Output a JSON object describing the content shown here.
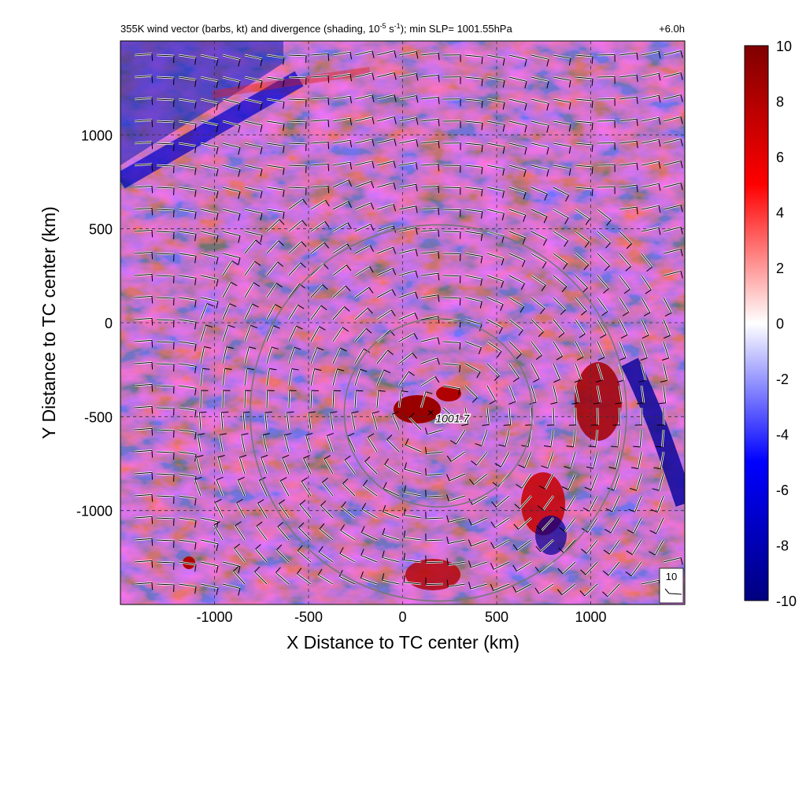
{
  "chart_data": {
    "type": "heatmap",
    "title_main": "355K wind vector (barbs, kt) and divergence (shading, 10",
    "title_exp1": "-5",
    "title_mid": " s",
    "title_exp2": "-1",
    "title_end": "); min SLP= 1001.55hPa",
    "time_label": "+6.0h",
    "xlabel": "X Distance to TC center (km)",
    "ylabel": "Y Distance to TC center (km)",
    "xlim": [
      -1500,
      1500
    ],
    "ylim": [
      -1500,
      1500
    ],
    "xticks": [
      -1000,
      -500,
      0,
      500,
      1000
    ],
    "yticks": [
      1000,
      500,
      0,
      -500,
      -1000
    ],
    "xtick_labels": [
      "-1000",
      "-500",
      "0",
      "500",
      "1000"
    ],
    "ytick_labels": [
      "1000",
      "500",
      "0",
      "-500",
      "-1000"
    ],
    "grid": true,
    "colorbar": {
      "min": -10,
      "max": 10,
      "ticks": [
        10,
        8,
        6,
        4,
        2,
        0,
        -2,
        -4,
        -6,
        -8,
        -10
      ],
      "tick_labels": [
        "10",
        "8",
        "6",
        "4",
        "2",
        "0",
        "-2",
        "-4",
        "-6",
        "-8",
        "-10"
      ],
      "colors": [
        "#00007f",
        "#0000ff",
        "#ffffff",
        "#ff0000",
        "#7f0000"
      ]
    },
    "center_marker": {
      "x": 150,
      "y": -480,
      "label": "1001.7"
    },
    "range_circles": [
      {
        "cx": 190,
        "cy": -480,
        "r": 500
      },
      {
        "cx": 190,
        "cy": -480,
        "r": 1000
      }
    ],
    "reference_barb_label": "10"
  }
}
